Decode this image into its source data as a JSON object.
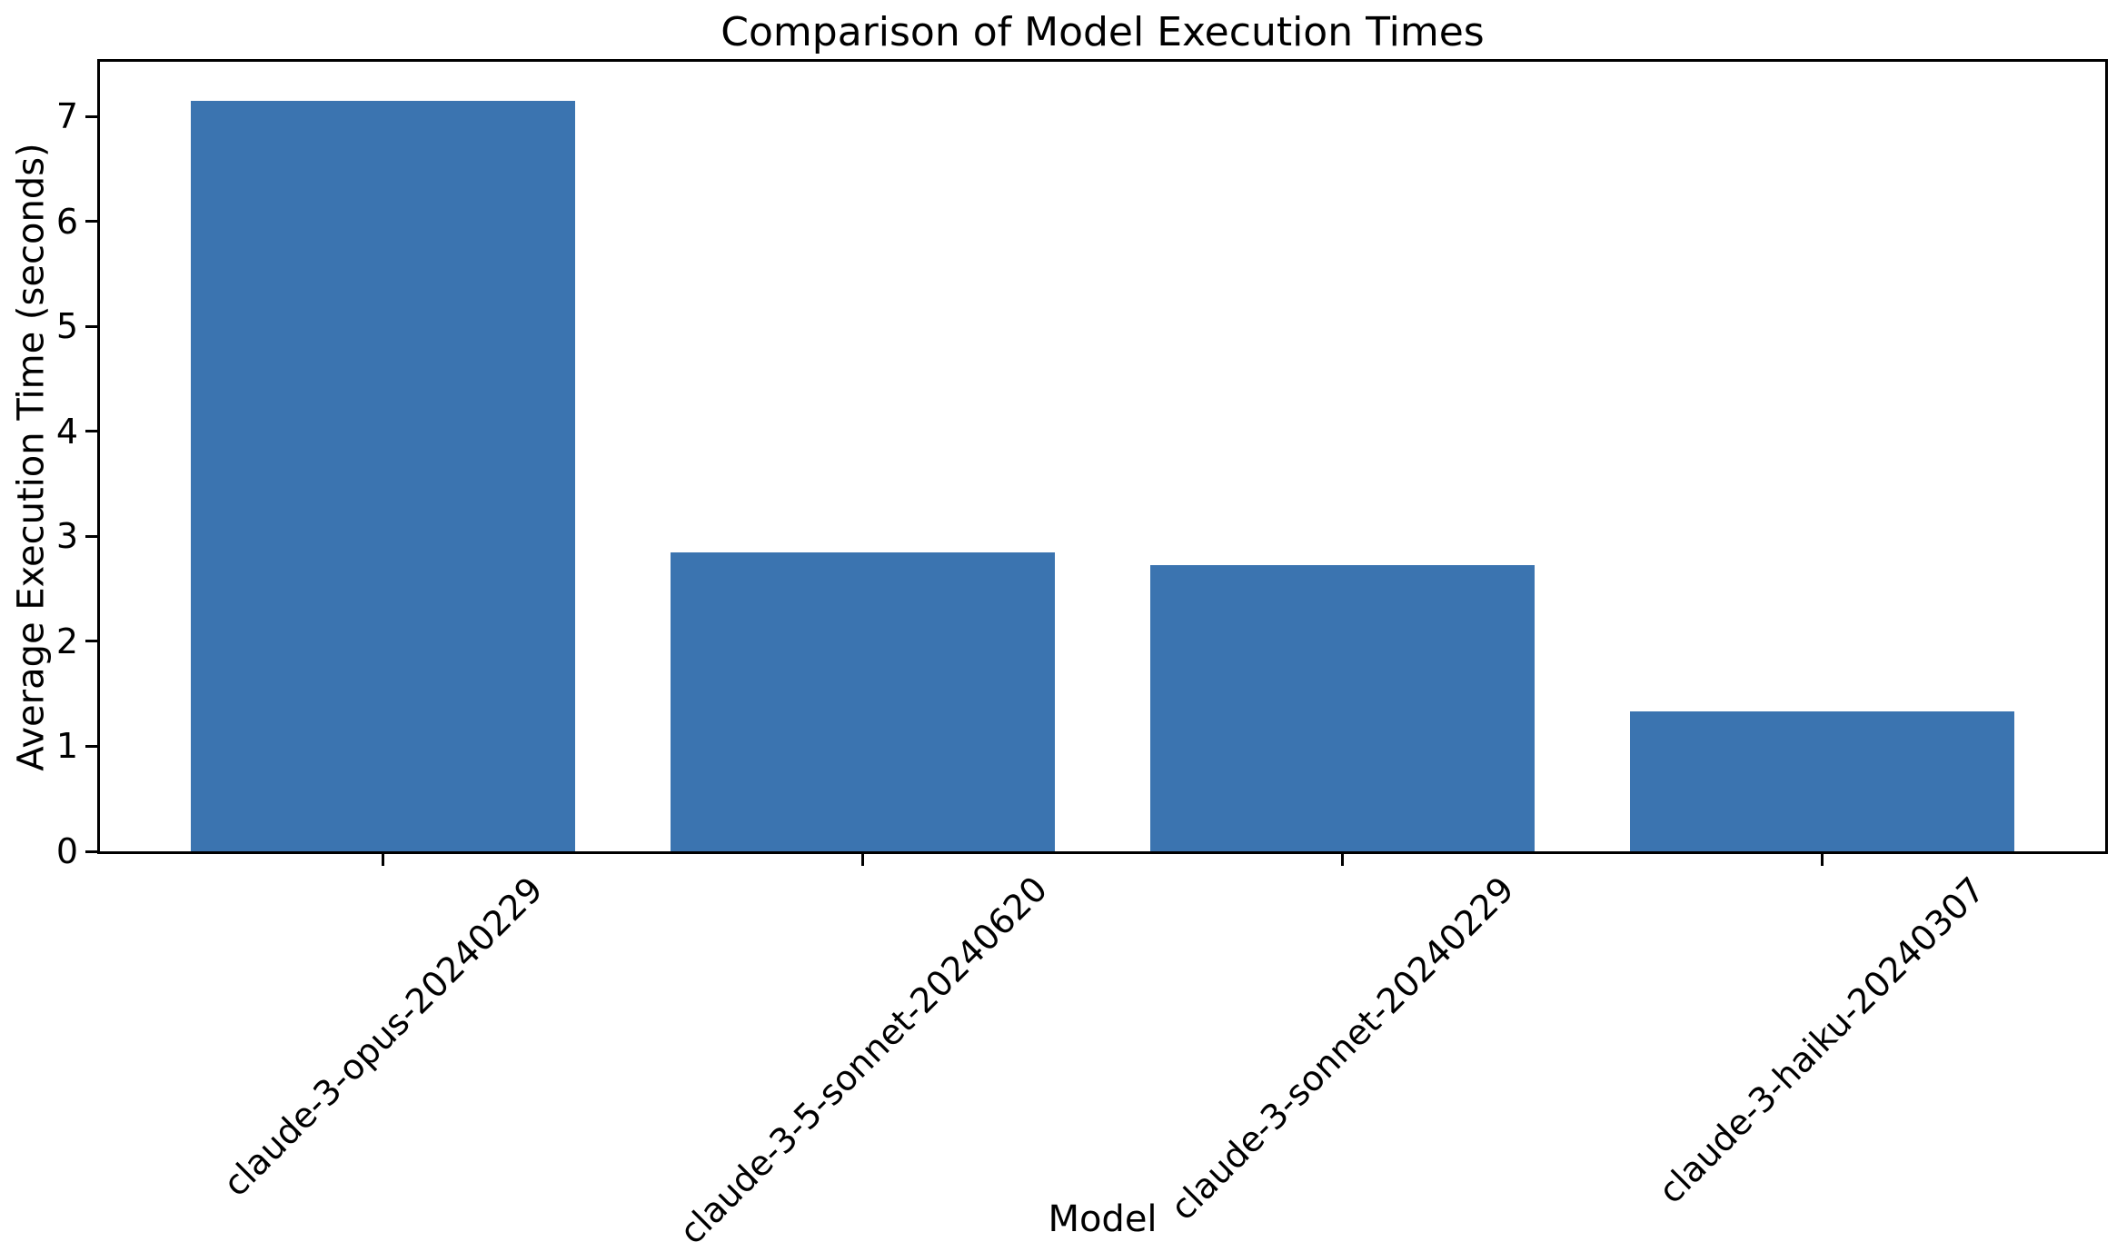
{
  "chart_data": {
    "type": "bar",
    "title": "Comparison of Model Execution Times",
    "xlabel": "Model",
    "ylabel": "Average Execution Time (seconds)",
    "categories": [
      "claude-3-opus-20240229",
      "claude-3-5-sonnet-20240620",
      "claude-3-sonnet-20240229",
      "claude-3-haiku-20240307"
    ],
    "values": [
      7.15,
      2.85,
      2.73,
      1.33
    ],
    "yticks": [
      0,
      1,
      2,
      3,
      4,
      5,
      6,
      7
    ],
    "ylim": [
      0,
      7.52
    ],
    "xlim": [
      -0.59,
      3.59
    ],
    "bar_width_fraction": 0.8,
    "bar_color": "#3B74B0",
    "axis_color": "#000000",
    "background_color": "#ffffff",
    "grid": false,
    "legend": null,
    "x_tick_rotation_deg": 45
  }
}
